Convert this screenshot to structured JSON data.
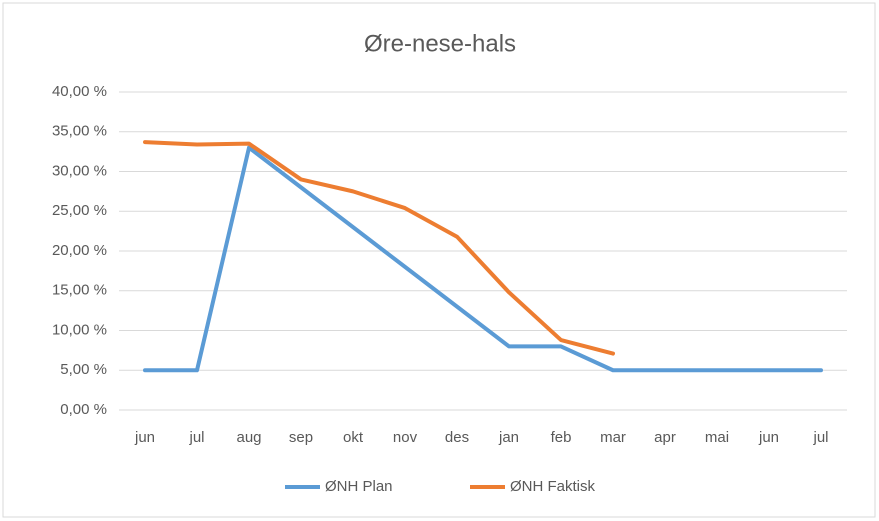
{
  "chart_data": {
    "type": "line",
    "title": "Øre-nese-hals",
    "categories": [
      "jun",
      "jul",
      "aug",
      "sep",
      "okt",
      "nov",
      "des",
      "jan",
      "feb",
      "mar",
      "apr",
      "mai",
      "jun",
      "jul"
    ],
    "series": [
      {
        "name": "ØNH Plan",
        "color": "#5b9bd5",
        "values": [
          5,
          5,
          33,
          28,
          23,
          18,
          13,
          8,
          8,
          5,
          5,
          5,
          5,
          5
        ]
      },
      {
        "name": "ØNH Faktisk",
        "color": "#ed7d31",
        "values": [
          33.7,
          33.4,
          33.5,
          29,
          27.5,
          25.4,
          21.8,
          14.8,
          8.8,
          7.1,
          null,
          null,
          null,
          null
        ]
      }
    ],
    "ylim": [
      0,
      40
    ],
    "yticks": [
      {
        "value": 0,
        "label": "0,00 %"
      },
      {
        "value": 5,
        "label": "5,00 %"
      },
      {
        "value": 10,
        "label": "10,00 %"
      },
      {
        "value": 15,
        "label": "15,00 %"
      },
      {
        "value": 20,
        "label": "20,00 %"
      },
      {
        "value": 25,
        "label": "25,00 %"
      },
      {
        "value": 30,
        "label": "30,00 %"
      },
      {
        "value": 35,
        "label": "35,00 %"
      },
      {
        "value": 40,
        "label": "40,00 %"
      }
    ],
    "grid": true,
    "legend": "bottom"
  }
}
